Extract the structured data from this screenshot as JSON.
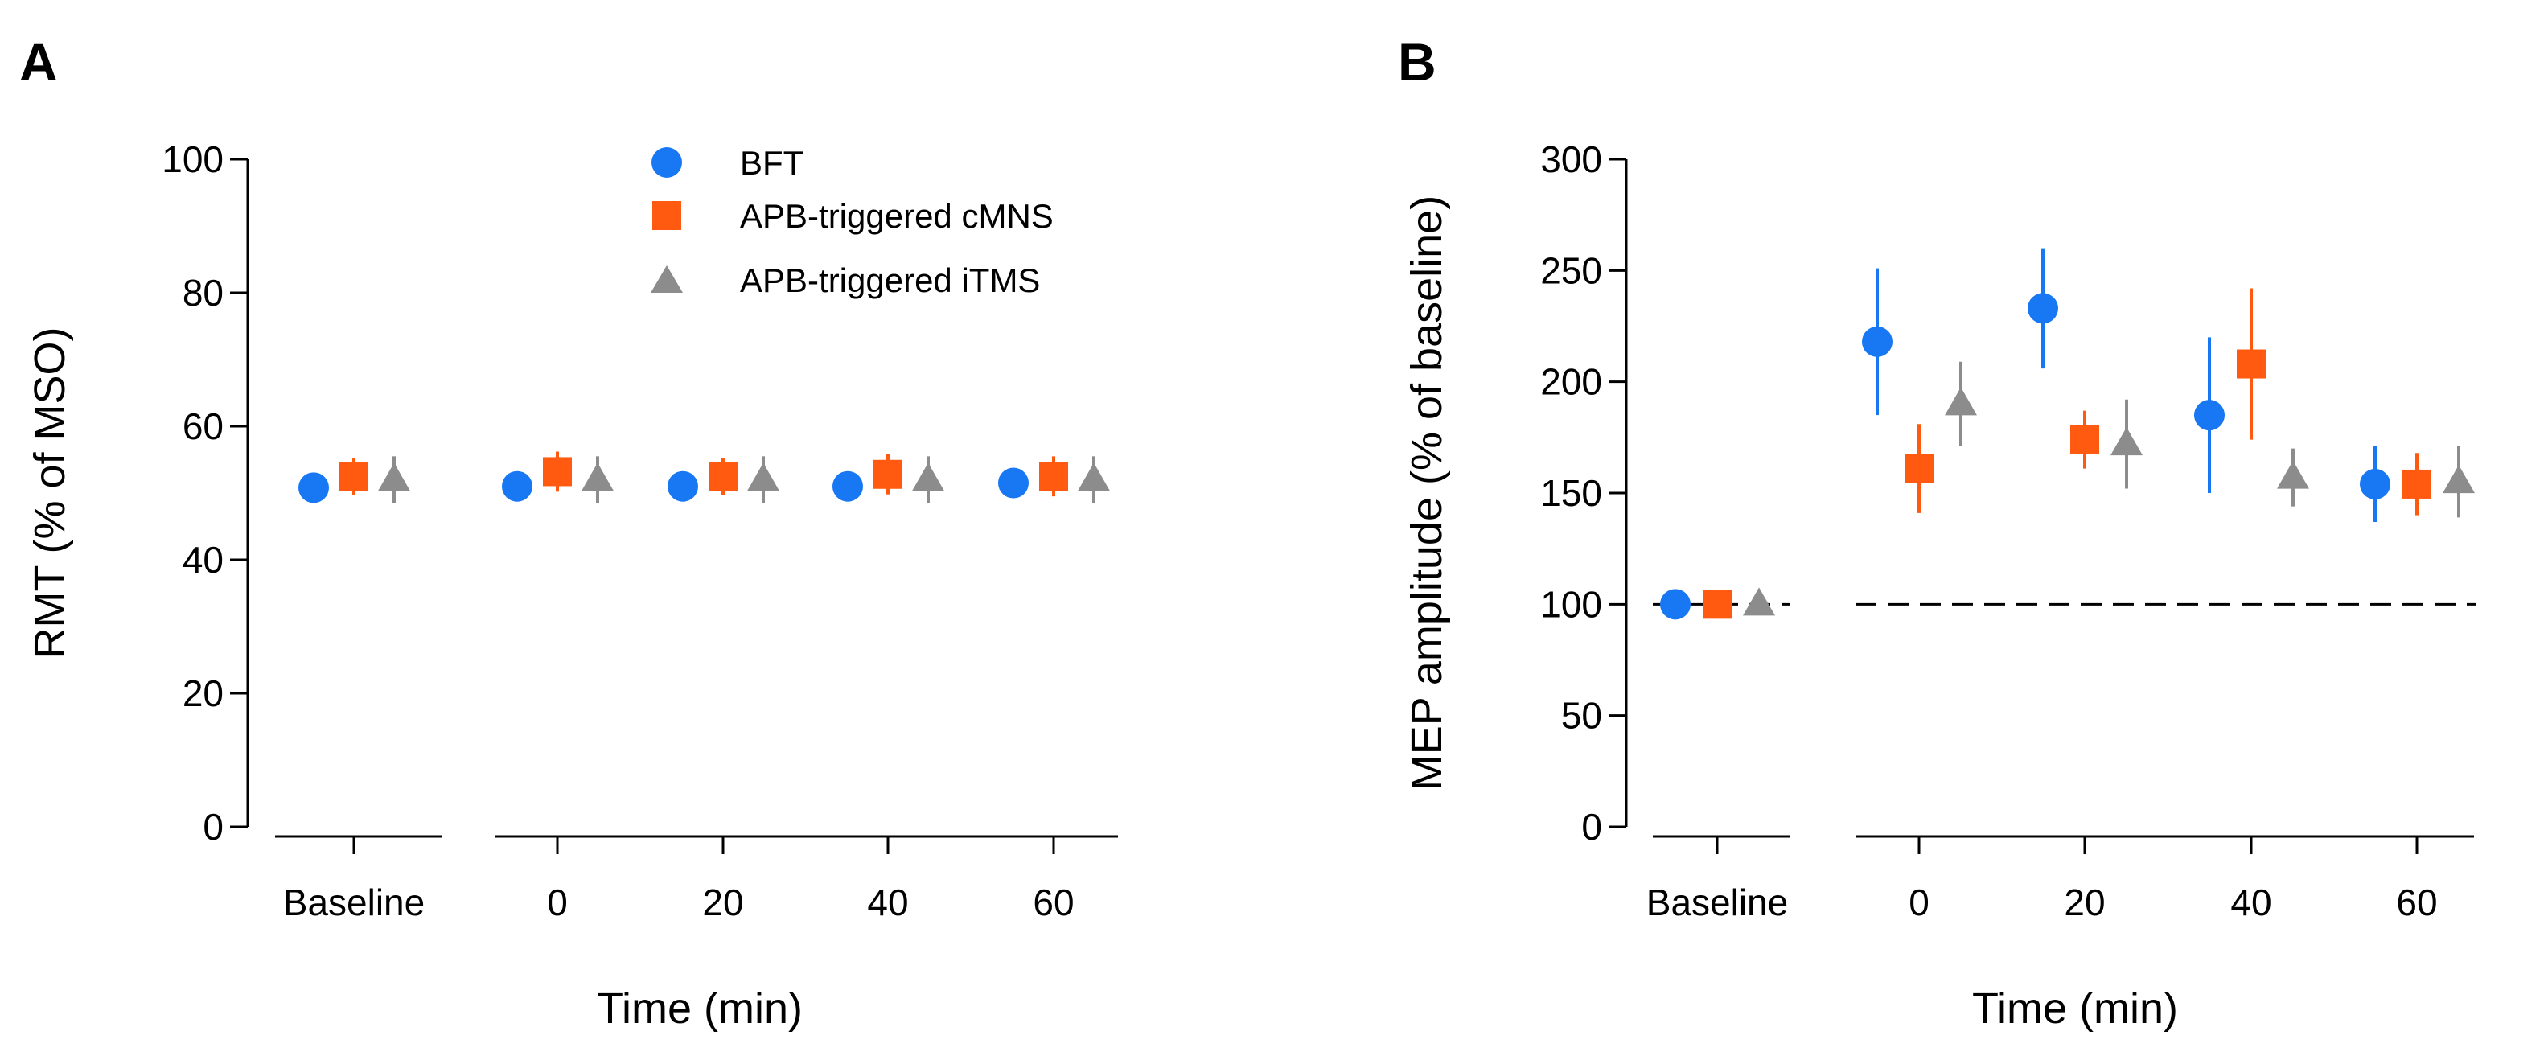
{
  "figure": {
    "panel_labels": [
      "A",
      "B"
    ]
  },
  "legend": {
    "entries": [
      {
        "label": "BFT",
        "color": "#1877F2",
        "marker": "circle"
      },
      {
        "label": "APB-triggered cMNS",
        "color": "#FF5A0F",
        "marker": "square"
      },
      {
        "label": "APB-triggered iTMS",
        "color": "#8C8C8C",
        "marker": "triangle"
      }
    ]
  },
  "chart_data": [
    {
      "panel": "A",
      "type": "scatter",
      "title": "",
      "xlabel": "Time (min)",
      "ylabel": "RMT (% of MSO)",
      "ylim": [
        0,
        100
      ],
      "yticks": [
        0,
        20,
        40,
        60,
        80,
        100
      ],
      "categories": [
        "Baseline",
        "0",
        "20",
        "40",
        "60"
      ],
      "reference_line": null,
      "series": [
        {
          "name": "BFT",
          "color": "#1877F2",
          "marker": "circle",
          "values": [
            50.8,
            51.0,
            51.0,
            51.0,
            51.5
          ],
          "errors": [
            1.5,
            1.5,
            1.5,
            1.5,
            1.5
          ]
        },
        {
          "name": "APB-triggered cMNS",
          "color": "#FF5A0F",
          "marker": "square",
          "values": [
            52.5,
            53.2,
            52.5,
            52.8,
            52.5
          ],
          "errors": [
            2.8,
            3.0,
            2.8,
            3.0,
            3.0
          ]
        },
        {
          "name": "APB-triggered iTMS",
          "color": "#8C8C8C",
          "marker": "triangle",
          "values": [
            52.0,
            52.0,
            52.0,
            52.0,
            52.0
          ],
          "errors": [
            3.5,
            3.5,
            3.5,
            3.5,
            3.5
          ]
        }
      ]
    },
    {
      "panel": "B",
      "type": "scatter",
      "title": "",
      "xlabel": "Time (min)",
      "ylabel": "MEP amplitude (% of baseline)",
      "ylim": [
        0,
        300
      ],
      "yticks": [
        0,
        50,
        100,
        150,
        200,
        250,
        300
      ],
      "categories": [
        "Baseline",
        "0",
        "20",
        "40",
        "60"
      ],
      "reference_line": 100,
      "series": [
        {
          "name": "BFT",
          "color": "#1877F2",
          "marker": "circle",
          "values": [
            100,
            218,
            233,
            185,
            154
          ],
          "errors": [
            0,
            33,
            27,
            35,
            17
          ]
        },
        {
          "name": "APB-triggered cMNS",
          "color": "#FF5A0F",
          "marker": "square",
          "values": [
            100,
            161,
            174,
            208,
            154
          ],
          "errors": [
            0,
            20,
            13,
            34,
            14
          ]
        },
        {
          "name": "APB-triggered iTMS",
          "color": "#8C8C8C",
          "marker": "triangle",
          "values": [
            100,
            190,
            172,
            157,
            155
          ],
          "errors": [
            0,
            19,
            20,
            13,
            16
          ]
        }
      ]
    }
  ]
}
